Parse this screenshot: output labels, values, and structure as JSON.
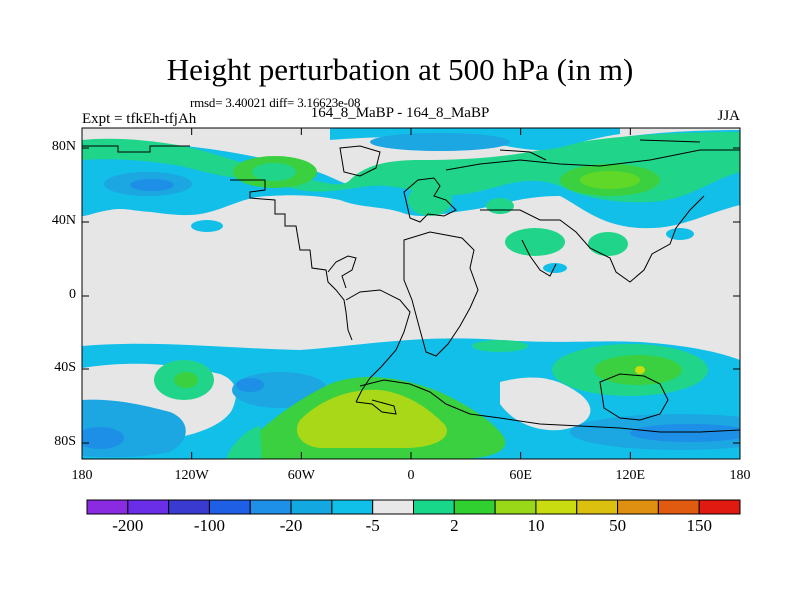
{
  "title": "Height perturbation at 500 hPa (in m)",
  "stats": "rmsd= 3.40021 diff= 3.16623e-08",
  "left_label": "Expt = tfkEh-tfjAh",
  "center_label": "164_8_MaBP - 164_8_MaBP",
  "right_label": "JJA",
  "lat_ticks": [
    "80N",
    "40N",
    "0",
    "40S",
    "80S"
  ],
  "lon_ticks": [
    "180",
    "120W",
    "60W",
    "0",
    "60E",
    "120E",
    "180"
  ],
  "colorbar": {
    "colors": [
      "#8a2be2",
      "#6a2de8",
      "#3a3ad0",
      "#1f5fe6",
      "#1e90e8",
      "#13a8e0",
      "#10c0e8",
      "#e8e8e8",
      "#18d68a",
      "#30d030",
      "#98d818",
      "#c8dc10",
      "#dcc010",
      "#e09010",
      "#e05a10",
      "#e01a10"
    ],
    "labels": [
      "-200",
      "-100",
      "-20",
      "-5",
      "2",
      "10",
      "50",
      "150"
    ]
  },
  "colors": {
    "neutral": "#e6e6e6",
    "light_blue": "#12bfe8",
    "mid_blue": "#1ca6e2",
    "deep_blue": "#1e8fe6",
    "teal_green": "#20d58a",
    "green": "#3ad040",
    "yellow_green": "#a8d818",
    "yellow": "#c9dc10"
  }
}
